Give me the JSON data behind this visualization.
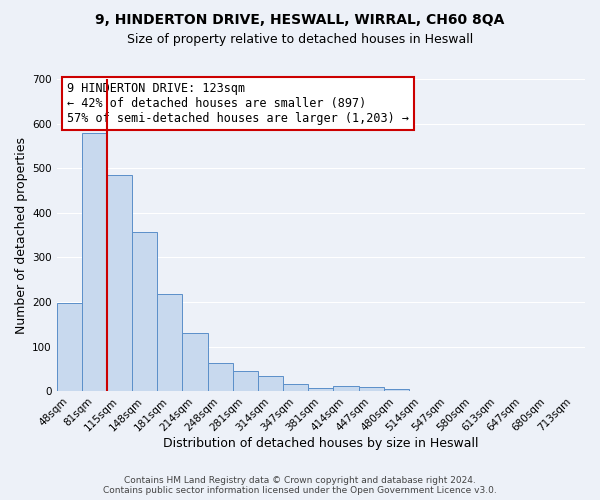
{
  "title": "9, HINDERTON DRIVE, HESWALL, WIRRAL, CH60 8QA",
  "subtitle": "Size of property relative to detached houses in Heswall",
  "xlabel": "Distribution of detached houses by size in Heswall",
  "ylabel": "Number of detached properties",
  "bar_labels": [
    "48sqm",
    "81sqm",
    "115sqm",
    "148sqm",
    "181sqm",
    "214sqm",
    "248sqm",
    "281sqm",
    "314sqm",
    "347sqm",
    "381sqm",
    "414sqm",
    "447sqm",
    "480sqm",
    "514sqm",
    "547sqm",
    "580sqm",
    "613sqm",
    "647sqm",
    "680sqm",
    "713sqm"
  ],
  "bar_values": [
    197,
    580,
    485,
    356,
    218,
    131,
    62,
    44,
    34,
    16,
    8,
    11,
    10,
    5,
    0,
    0,
    0,
    0,
    0,
    0,
    0
  ],
  "bar_color": "#c8d9ee",
  "bar_edge_color": "#5b8fc9",
  "vline_position": 2.0,
  "vline_color": "#cc0000",
  "annotation_title": "9 HINDERTON DRIVE: 123sqm",
  "annotation_line2": "← 42% of detached houses are smaller (897)",
  "annotation_line3": "57% of semi-detached houses are larger (1,203) →",
  "annotation_box_edge_color": "#cc0000",
  "ylim": [
    0,
    700
  ],
  "yticks": [
    0,
    100,
    200,
    300,
    400,
    500,
    600,
    700
  ],
  "footer_line1": "Contains HM Land Registry data © Crown copyright and database right 2024.",
  "footer_line2": "Contains public sector information licensed under the Open Government Licence v3.0.",
  "background_color": "#edf1f8",
  "grid_color": "#ffffff",
  "title_fontsize": 10,
  "subtitle_fontsize": 9,
  "axis_label_fontsize": 9,
  "tick_fontsize": 7.5,
  "annotation_fontsize": 8.5,
  "footer_fontsize": 6.5
}
